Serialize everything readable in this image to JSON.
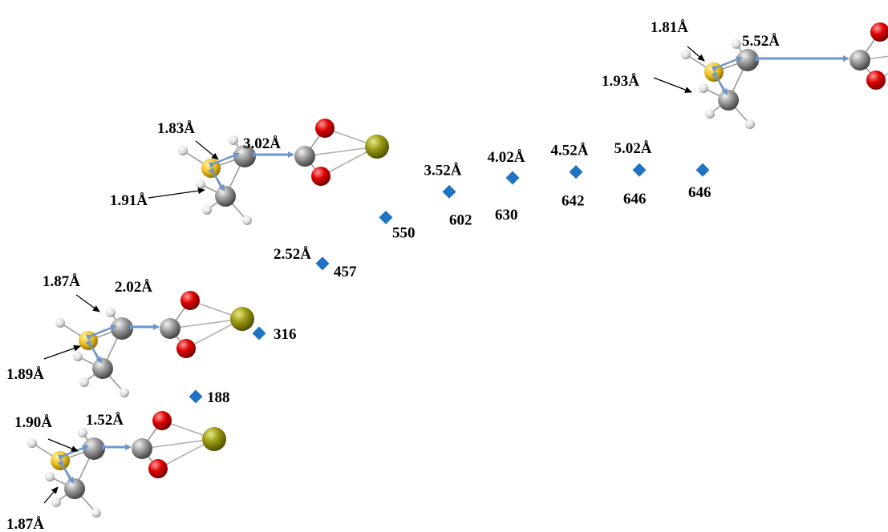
{
  "colors": {
    "marker": "#1f72c4",
    "carbon": "#8c8c8c",
    "oxygen": "#e00000",
    "sulfur": "#9a9a12",
    "hydrogen": "#e6e6e6",
    "metal": "#f0c020",
    "arrow_blue": "#6d97cc"
  },
  "chart_data": {
    "type": "scatter",
    "title": "",
    "xlabel": "",
    "ylabel": "",
    "grid": false,
    "legend": "none",
    "points": [
      {
        "x": 1.52,
        "y": 188,
        "value_label": "188",
        "distance_label": ""
      },
      {
        "x": 2.02,
        "y": 316,
        "value_label": "316",
        "distance_label": ""
      },
      {
        "x": 2.52,
        "y": 457,
        "value_label": "457",
        "distance_label": "2.52Å"
      },
      {
        "x": 3.02,
        "y": 550,
        "value_label": "550",
        "distance_label": ""
      },
      {
        "x": 3.52,
        "y": 602,
        "value_label": "602",
        "distance_label": "3.52Å"
      },
      {
        "x": 4.02,
        "y": 630,
        "value_label": "630",
        "distance_label": "4.02Å"
      },
      {
        "x": 4.52,
        "y": 642,
        "value_label": "642",
        "distance_label": "4.52Å"
      },
      {
        "x": 5.02,
        "y": 646,
        "value_label": "646",
        "distance_label": "5.02Å"
      },
      {
        "x": 5.52,
        "y": 646,
        "value_label": "646",
        "distance_label": ""
      }
    ]
  },
  "structures": [
    {
      "name": "structure-1-52",
      "labels": {
        "top": "1.90Å",
        "separation": "1.52Å",
        "bottom": "1.87Å"
      }
    },
    {
      "name": "structure-2-02",
      "labels": {
        "top": "1.87Å",
        "separation": "2.02Å",
        "bottom": "1.89Å"
      }
    },
    {
      "name": "structure-3-02",
      "labels": {
        "top": "1.83Å",
        "separation": "3.02Å",
        "bottom": "1.91Å"
      }
    },
    {
      "name": "structure-5-52",
      "labels": {
        "top": "1.81Å",
        "separation": "5.52Å",
        "bottom": "1.93Å"
      }
    }
  ]
}
